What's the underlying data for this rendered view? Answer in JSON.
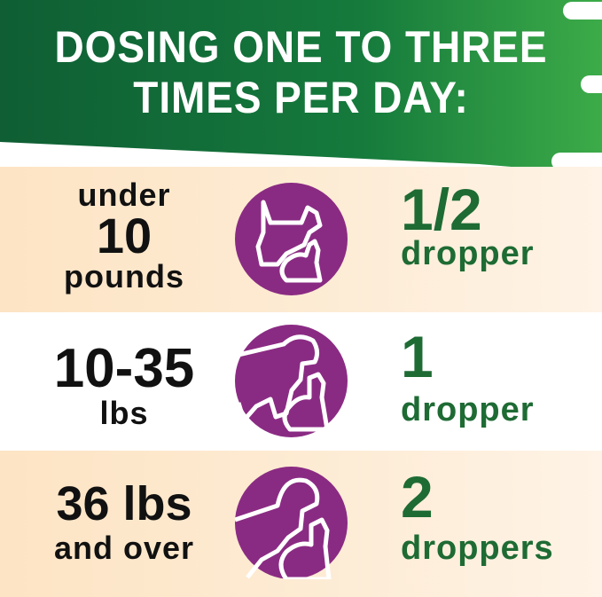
{
  "banner": {
    "line1": "DOSING ONE TO THREE",
    "line2": "TIMES PER DAY:",
    "color": "#1a6b3a"
  },
  "rows": [
    {
      "weight_top": "under",
      "weight_main": "10",
      "weight_bottom": "pounds",
      "amount": "1/2",
      "unit": "dropper",
      "icon": "small-dog-and-cat-icon"
    },
    {
      "weight_main": "10-35",
      "weight_bottom": "lbs",
      "amount": "1",
      "unit": "dropper",
      "icon": "medium-dog-and-cat-icon"
    },
    {
      "weight_main": "36 lbs",
      "weight_bottom": "and over",
      "amount": "2",
      "unit": "droppers",
      "icon": "large-dog-and-cat-icon"
    }
  ],
  "colors": {
    "icon_circle": "#8a2b83",
    "dose_text": "#1e6b34",
    "peach": "#fde4c4"
  }
}
